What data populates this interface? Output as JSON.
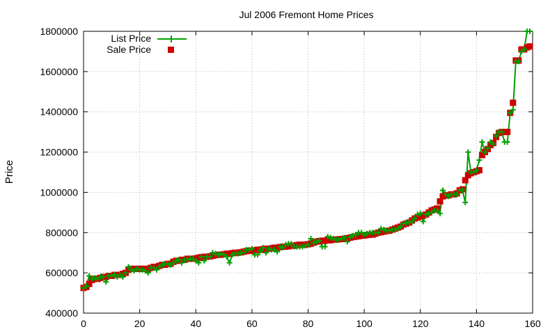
{
  "chart_data": {
    "type": "line",
    "title": "Jul 2006 Fremont Home Prices",
    "xlabel": "",
    "ylabel": "Price",
    "xlim": [
      0,
      160
    ],
    "ylim": [
      400000,
      1800000
    ],
    "x_ticks": [
      "0",
      "20",
      "40",
      "60",
      "80",
      "100",
      "120",
      "140",
      "160"
    ],
    "y_ticks": [
      "400000",
      "600000",
      "800000",
      "1000000",
      "1200000",
      "1400000",
      "1600000",
      "1800000"
    ],
    "grid": true,
    "legend_position": "top-left",
    "series": [
      {
        "name": "List Price",
        "marker": "plus",
        "color": "#00a000",
        "values": [
          525000,
          535000,
          585000,
          570000,
          575000,
          570000,
          580000,
          580000,
          555000,
          585000,
          585000,
          590000,
          580000,
          590000,
          580000,
          600000,
          630000,
          615000,
          610000,
          620000,
          615000,
          615000,
          610000,
          600000,
          625000,
          625000,
          615000,
          630000,
          640000,
          645000,
          645000,
          640000,
          650000,
          660000,
          665000,
          650000,
          665000,
          665000,
          670000,
          670000,
          660000,
          650000,
          680000,
          660000,
          680000,
          680000,
          700000,
          695000,
          690000,
          695000,
          690000,
          680000,
          650000,
          690000,
          695000,
          695000,
          700000,
          700000,
          715000,
          715000,
          720000,
          690000,
          690000,
          710000,
          725000,
          700000,
          720000,
          715000,
          715000,
          705000,
          730000,
          725000,
          740000,
          745000,
          745000,
          730000,
          730000,
          730000,
          730000,
          735000,
          740000,
          770000,
          750000,
          755000,
          760000,
          730000,
          730000,
          780000,
          775000,
          770000,
          765000,
          765000,
          770000,
          775000,
          755000,
          780000,
          785000,
          790000,
          800000,
          800000,
          790000,
          795000,
          800000,
          800000,
          800000,
          800000,
          820000,
          815000,
          810000,
          810000,
          815000,
          815000,
          820000,
          830000,
          845000,
          850000,
          850000,
          855000,
          870000,
          890000,
          895000,
          855000,
          890000,
          895000,
          900000,
          910000,
          910000,
          895000,
          1010000,
          990000,
          980000,
          990000,
          990000,
          990000,
          1010000,
          1010000,
          950000,
          1200000,
          1100000,
          1100000,
          1110000,
          1160000,
          1250000,
          1200000,
          1220000,
          1250000,
          1240000,
          1280000,
          1300000,
          1300000,
          1250000,
          1250000,
          1395000,
          1410000,
          1650000,
          1650000,
          1700000,
          1710000,
          1800000,
          1800000
        ]
      },
      {
        "name": "Sale Price",
        "marker": "square",
        "color": "#cc0000",
        "values": [
          525000,
          530000,
          545000,
          565000,
          570000,
          570000,
          575000,
          580000,
          580000,
          585000,
          585000,
          590000,
          590000,
          590000,
          595000,
          600000,
          615000,
          620000,
          620000,
          620000,
          620000,
          620000,
          620000,
          620000,
          625000,
          630000,
          630000,
          635000,
          640000,
          640000,
          645000,
          645000,
          655000,
          660000,
          660000,
          665000,
          665000,
          670000,
          670000,
          670000,
          672000,
          675000,
          678000,
          680000,
          680000,
          682000,
          685000,
          688000,
          690000,
          690000,
          692000,
          695000,
          695000,
          698000,
          700000,
          700000,
          702000,
          705000,
          708000,
          710000,
          710000,
          712000,
          715000,
          715000,
          718000,
          720000,
          720000,
          722000,
          725000,
          725000,
          728000,
          730000,
          730000,
          732000,
          735000,
          735000,
          738000,
          740000,
          740000,
          740000,
          742000,
          745000,
          750000,
          755000,
          758000,
          760000,
          760000,
          762000,
          762000,
          765000,
          765000,
          767000,
          768000,
          770000,
          772000,
          775000,
          778000,
          780000,
          782000,
          785000,
          785000,
          788000,
          790000,
          790000,
          795000,
          800000,
          802000,
          805000,
          808000,
          810000,
          815000,
          820000,
          825000,
          830000,
          840000,
          845000,
          850000,
          860000,
          870000,
          875000,
          880000,
          885000,
          890000,
          900000,
          910000,
          915000,
          920000,
          955000,
          980000,
          985000,
          985000,
          990000,
          990000,
          995000,
          1010000,
          1015000,
          1060000,
          1085000,
          1095000,
          1100000,
          1105000,
          1110000,
          1185000,
          1200000,
          1215000,
          1235000,
          1245000,
          1275000,
          1295000,
          1300000,
          1300000,
          1300000,
          1395000,
          1445000,
          1655000,
          1655000,
          1710000,
          1710000,
          1720000,
          1725000
        ]
      }
    ]
  }
}
